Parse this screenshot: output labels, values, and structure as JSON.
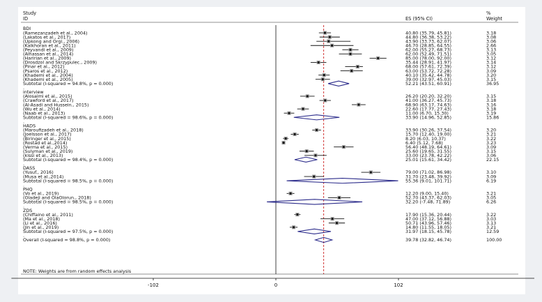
{
  "chart_data": {
    "type": "forest",
    "header": {
      "study": "Study",
      "id": "ID",
      "es_ci": "ES (95% CI)",
      "pct": "%",
      "weight": "Weight"
    },
    "reference_line": 0,
    "overall_line": 39.78,
    "x_ticks": [
      -102,
      0,
      102
    ],
    "xlim": [
      -220,
      215
    ],
    "footnote": "NOTE: Weights are from random effects analysis",
    "rows": [
      {
        "type": "group",
        "label": "BDI"
      },
      {
        "type": "study",
        "label": "(Ramezanzadeh et al., 2004)",
        "es": 40.8,
        "lo": 35.79,
        "hi": 45.81,
        "es_text": "40.80 (35.79, 45.81)",
        "weight": "3.18"
      },
      {
        "type": "study",
        "label": "(Lakatos et al., 2017)",
        "es": 44.8,
        "lo": 36.38,
        "hi": 53.22,
        "es_text": "44.80 (36.38, 53.22)",
        "weight": "3.08"
      },
      {
        "type": "study",
        "label": "(Upkong and Orgi., 2006)",
        "es": 43.9,
        "lo": 33.73,
        "hi": 62.07,
        "es_text": "43.90 (33.73, 62.07)",
        "weight": "3.06"
      },
      {
        "type": "study",
        "label": "(Kalkhoran et al., 2011)",
        "es": 46.7,
        "lo": 28.85,
        "hi": 64.55,
        "es_text": "46.70 (28.85, 64.55)",
        "weight": "2.66"
      },
      {
        "type": "study",
        "label": "(Peyvandi et al., 2009)",
        "es": 62.0,
        "lo": 55.27,
        "hi": 68.73,
        "es_text": "62.00 (55.27, 68.73)",
        "weight": "3.13"
      },
      {
        "type": "study",
        "label": "(Alhassan et al., 2014)",
        "es": 62.0,
        "lo": 52.49,
        "hi": 71.51,
        "es_text": "62.00 (52.49, 71.51)",
        "weight": "3.05"
      },
      {
        "type": "study",
        "label": "(Haririan et al., 2009)",
        "es": 85.0,
        "lo": 78.0,
        "hi": 92.0,
        "es_text": "85.00 (78.00, 92.00)",
        "weight": "3.12"
      },
      {
        "type": "study",
        "label": "(Drosdzol and Skrzypulec., 2009)",
        "es": 35.44,
        "lo": 28.91,
        "hi": 41.97,
        "es_text": "35.44 (28.91, 41.97)",
        "weight": "3.14"
      },
      {
        "type": "study",
        "label": "(Pinar et al., 2012)",
        "es": 68.0,
        "lo": 57.61,
        "hi": 72.39,
        "es_text": "68.00 (57.61, 72.39)",
        "weight": "3.12"
      },
      {
        "type": "study",
        "label": "(Psaros et al., 2012)",
        "es": 63.0,
        "lo": 53.72,
        "hi": 72.28,
        "es_text": "63.00 (53.72, 72.28)",
        "weight": "3.09"
      },
      {
        "type": "study",
        "label": "(Khademi et al., 2004)",
        "es": 40.1,
        "lo": 35.42,
        "hi": 44.78,
        "es_text": "40.10 (35.42, 44.78)",
        "weight": "3.20"
      },
      {
        "type": "study",
        "label": "(Khademi et al., 2005)",
        "es": 39.0,
        "lo": 32.97,
        "hi": 45.03,
        "es_text": "39.00 (32.97, 45.03)",
        "weight": "3.15"
      },
      {
        "type": "subtotal",
        "label": "Subtotal  (I-squared = 94.8%, p = 0.000)",
        "es": 52.21,
        "lo": 43.51,
        "hi": 60.91,
        "es_text": "52.21 (43.51, 60.91)",
        "weight": "36.95"
      },
      {
        "type": "gap",
        "label": "."
      },
      {
        "type": "group",
        "label": "interview"
      },
      {
        "type": "study",
        "label": "(Alosaimi et al., 2015)",
        "es": 26.2,
        "lo": 20.2,
        "hi": 32.2,
        "es_text": "26.20 (20.20, 32.20)",
        "weight": "3.15"
      },
      {
        "type": "study",
        "label": "(Crawford et al., 2017)",
        "es": 41.0,
        "lo": 36.27,
        "hi": 45.73,
        "es_text": "41.00 (36.27, 45.73)",
        "weight": "3.18"
      },
      {
        "type": "study",
        "label": "(Al-Asadi and Hussein., 2015)",
        "es": 68.9,
        "lo": 63.17,
        "hi": 74.63,
        "es_text": "68.90 (63.17, 74.63)",
        "weight": "3.16"
      },
      {
        "type": "study",
        "label": "(Wu et al., 2014)",
        "es": 22.6,
        "lo": 17.77,
        "hi": 27.43,
        "es_text": "22.60 (17.77, 27.43)",
        "weight": "3.18"
      },
      {
        "type": "study",
        "label": "(Naab et al., 2013)",
        "es": 11.0,
        "lo": 6.7,
        "hi": 15.3,
        "es_text": "11.00 (6.70, 15.30)",
        "weight": "3.19"
      },
      {
        "type": "subtotal",
        "label": "Subtotal  (I-squared = 98.6%, p = 0.000)",
        "es": 33.9,
        "lo": 14.96,
        "hi": 52.85,
        "es_text": "33.90 (14.96, 52.85)",
        "weight": "15.86"
      },
      {
        "type": "gap",
        "label": "."
      },
      {
        "type": "group",
        "label": "HADS"
      },
      {
        "type": "study",
        "label": "(Maroufizadeh et al., 2018)",
        "es": 33.9,
        "lo": 30.26,
        "hi": 37.54,
        "es_text": "33.90 (30.26, 37.54)",
        "weight": "3.20"
      },
      {
        "type": "study",
        "label": "(Joelsson et al., 2017)",
        "es": 15.7,
        "lo": 12.4,
        "hi": 19.0,
        "es_text": "15.70 (12.40, 19.00)",
        "weight": "3.21"
      },
      {
        "type": "study",
        "label": "(Biringer et al., 2015)",
        "es": 8.2,
        "lo": 6.03,
        "hi": 10.37,
        "es_text": "8.20 (6.03, 10.37)",
        "weight": "3.22"
      },
      {
        "type": "study",
        "label": "(Rostad et al.,2014)",
        "es": 6.4,
        "lo": 5.12,
        "hi": 7.68,
        "es_text": "6.40 (5.12, 7.68)",
        "weight": "3.23"
      },
      {
        "type": "study",
        "label": "(Verma et al., 2015)",
        "es": 56.4,
        "lo": 48.19,
        "hi": 64.61,
        "es_text": "56.40 (48.19, 64.61)",
        "weight": "3.09"
      },
      {
        "type": "study",
        "label": "(Sulyman et al., 2019)",
        "es": 25.6,
        "lo": 19.65,
        "hi": 31.55,
        "es_text": "25.60 (19.65, 31.55)",
        "weight": "3.15"
      },
      {
        "type": "study",
        "label": "(kissi  et al., 2013)",
        "es": 33.0,
        "lo": 23.78,
        "hi": 42.22,
        "es_text": "33.00 (23.78, 42.22)",
        "weight": "3.06"
      },
      {
        "type": "subtotal",
        "label": "Subtotal  (I-squared = 98.4%, p = 0.000)",
        "es": 25.01,
        "lo": 15.61,
        "hi": 34.42,
        "es_text": "25.01 (15.61, 34.42)",
        "weight": "22.15"
      },
      {
        "type": "gap",
        "label": "."
      },
      {
        "type": "group",
        "label": "DASS"
      },
      {
        "type": "study",
        "label": "(Yusuf., 2016)",
        "es": 79.0,
        "lo": 71.02,
        "hi": 86.98,
        "es_text": "79.00 (71.02, 86.98)",
        "weight": "3.10"
      },
      {
        "type": "study",
        "label": "(Musa et al.,2014)",
        "es": 31.7,
        "lo": 23.48,
        "hi": 39.92,
        "es_text": "31.70 (23.48, 39.92)",
        "weight": "3.09"
      },
      {
        "type": "subtotal",
        "label": "Subtotal  (I-squared = 98.5%, p = 0.000)",
        "es": 55.36,
        "lo": 9.01,
        "hi": 101.71,
        "es_text": "55.36 (9.01, 101.71)",
        "weight": "6.19"
      },
      {
        "type": "gap",
        "label": "."
      },
      {
        "type": "group",
        "label": "PHQ"
      },
      {
        "type": "study",
        "label": "(Vo et al., 2019)",
        "es": 12.2,
        "lo": 9.0,
        "hi": 15.4,
        "es_text": "12.20 (9.00, 15.40)",
        "weight": "3.21"
      },
      {
        "type": "study",
        "label": "(Oladeji and OlaOlorun., 2018)",
        "es": 52.7,
        "lo": 43.37,
        "hi": 62.03,
        "es_text": "52.70 (43.37, 62.03)",
        "weight": "3.05"
      },
      {
        "type": "subtotal",
        "label": "Subtotal  (I-squared = 98.5%, p = 0.000)",
        "es": 32.2,
        "lo": -7.48,
        "hi": 71.89,
        "es_text": "32.20 (-7.48, 71.89)",
        "weight": "6.26"
      },
      {
        "type": "gap",
        "label": "."
      },
      {
        "type": "group",
        "label": "ZDS"
      },
      {
        "type": "study",
        "label": "(Chiffaino et al., 2011)",
        "es": 17.9,
        "lo": 15.36,
        "hi": 20.44,
        "es_text": "17.90 (15.36, 20.44)",
        "weight": "3.22"
      },
      {
        "type": "study",
        "label": "(Ma et al., 2018)",
        "es": 47.0,
        "lo": 37.12,
        "hi": 56.88,
        "es_text": "47.00 (37.12, 56.88)",
        "weight": "3.03"
      },
      {
        "type": "study",
        "label": "(Li et al., 2016)",
        "es": 50.71,
        "lo": 43.96,
        "hi": 57.46,
        "es_text": "50.71 (43.96, 57.46)",
        "weight": "3.13"
      },
      {
        "type": "study",
        "label": "(Jin  et al., 2019)",
        "es": 14.8,
        "lo": 11.55,
        "hi": 18.05,
        "es_text": "14.80 (11.55, 18.05)",
        "weight": "3.21"
      },
      {
        "type": "subtotal",
        "label": "Subtotal  (I-squared = 97.5%, p = 0.000)",
        "es": 31.97,
        "lo": 18.15,
        "hi": 45.78,
        "es_text": "31.97 (18.15, 45.78)",
        "weight": "12.59"
      },
      {
        "type": "gap",
        "label": "."
      },
      {
        "type": "overall",
        "label": "Overall  (I-squared = 98.8%, p = 0.000)",
        "es": 39.78,
        "lo": 32.82,
        "hi": 46.74,
        "es_text": "39.78 (32.82, 46.74)",
        "weight": "100.00"
      }
    ],
    "colors": {
      "diamond": "#2a2a8a",
      "overall_line": "#cc2222",
      "text": "#111111",
      "box": "#a0a0a0"
    }
  }
}
